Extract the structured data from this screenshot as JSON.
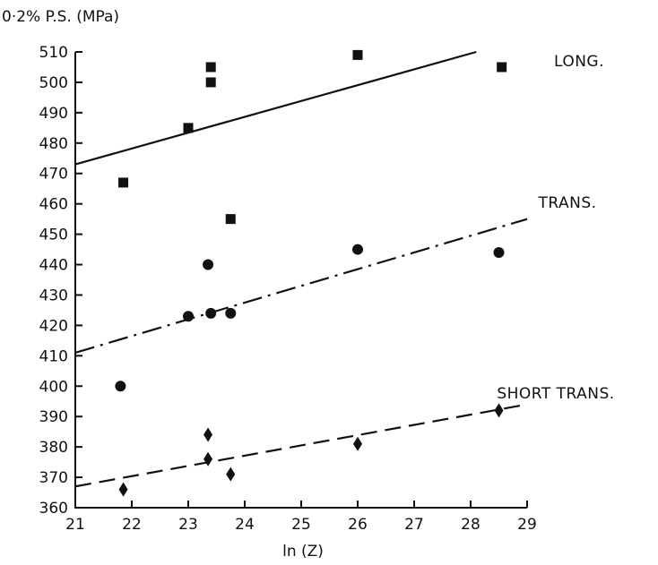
{
  "chart_data": {
    "type": "scatter",
    "ylabel": "0·2% P.S. (MPa)",
    "xlabel": "ln (Z)",
    "xlim": [
      21,
      29
    ],
    "ylim": [
      360,
      510
    ],
    "x_ticks": [
      "21",
      "22",
      "23",
      "24",
      "25",
      "26",
      "27",
      "28",
      "29"
    ],
    "y_ticks": [
      "360",
      "370",
      "380",
      "390",
      "400",
      "410",
      "420",
      "430",
      "440",
      "450",
      "460",
      "470",
      "480",
      "490",
      "500",
      "510"
    ],
    "grid": false,
    "series": [
      {
        "name": "LONG.",
        "marker": "square",
        "line_style": "solid",
        "points": [
          [
            21.85,
            467
          ],
          [
            23.0,
            485
          ],
          [
            23.4,
            505
          ],
          [
            23.4,
            500
          ],
          [
            23.75,
            455
          ],
          [
            26.0,
            509
          ],
          [
            28.55,
            505
          ]
        ],
        "fit": [
          [
            21.0,
            473
          ],
          [
            28.1,
            510
          ]
        ]
      },
      {
        "name": "TRANS.",
        "marker": "circle",
        "line_style": "dash-dot",
        "points": [
          [
            21.8,
            400
          ],
          [
            23.0,
            423
          ],
          [
            23.35,
            440
          ],
          [
            23.4,
            424
          ],
          [
            23.75,
            424
          ],
          [
            26.0,
            445
          ],
          [
            28.5,
            444
          ]
        ],
        "fit": [
          [
            21.0,
            411
          ],
          [
            29.0,
            455
          ]
        ]
      },
      {
        "name": "SHORT TRANS.",
        "marker": "diamond",
        "line_style": "dashed",
        "points": [
          [
            21.85,
            366
          ],
          [
            23.35,
            384
          ],
          [
            23.35,
            376
          ],
          [
            23.75,
            371
          ],
          [
            26.0,
            381
          ],
          [
            28.5,
            392
          ]
        ],
        "fit": [
          [
            21.0,
            367
          ],
          [
            29.0,
            394
          ]
        ]
      }
    ]
  }
}
